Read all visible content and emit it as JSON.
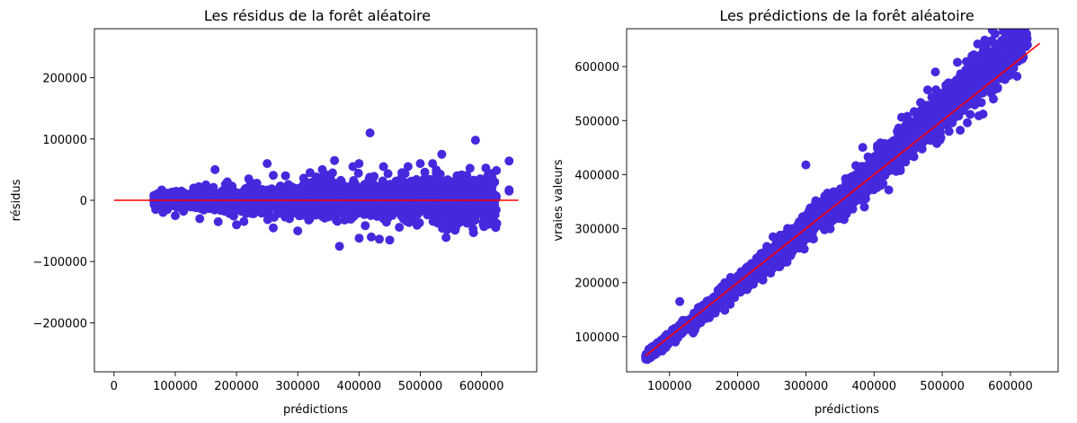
{
  "chart_data": [
    {
      "type": "scatter",
      "title": "Les résidus de la forêt aléatoire",
      "xlabel": "prédictions",
      "ylabel": "résidus",
      "xlim": [
        -32000,
        690000
      ],
      "ylim": [
        -280000,
        280000
      ],
      "xticks": [
        0,
        100000,
        200000,
        300000,
        400000,
        500000,
        600000
      ],
      "xtick_labels": [
        "0",
        "100000",
        "200000",
        "300000",
        "400000",
        "500000",
        "600000"
      ],
      "yticks": [
        -200000,
        -100000,
        0,
        100000,
        200000
      ],
      "ytick_labels": [
        "−200000",
        "−100000",
        "0",
        "100000",
        "200000"
      ],
      "grid": false,
      "point_color": "#4529DD",
      "line_color": "#FF0000",
      "reference_line": {
        "x": [
          0,
          660000
        ],
        "y": [
          0,
          0
        ]
      },
      "sampled_points": [
        [
          68000,
          -15000
        ],
        [
          72000,
          -8000
        ],
        [
          75000,
          2000
        ],
        [
          80000,
          -20000
        ],
        [
          85000,
          5000
        ],
        [
          90000,
          -5000
        ],
        [
          95000,
          10000
        ],
        [
          100000,
          -25000
        ],
        [
          110000,
          15000
        ],
        [
          120000,
          -10000
        ],
        [
          130000,
          20000
        ],
        [
          140000,
          -30000
        ],
        [
          150000,
          25000
        ],
        [
          165000,
          50000
        ],
        [
          170000,
          -35000
        ],
        [
          185000,
          30000
        ],
        [
          200000,
          -40000
        ],
        [
          220000,
          35000
        ],
        [
          250000,
          60000
        ],
        [
          260000,
          -45000
        ],
        [
          280000,
          40000
        ],
        [
          300000,
          -50000
        ],
        [
          320000,
          45000
        ],
        [
          340000,
          50000
        ],
        [
          360000,
          65000
        ],
        [
          368000,
          -75000
        ],
        [
          390000,
          55000
        ],
        [
          400000,
          60000
        ],
        [
          418000,
          110000
        ],
        [
          420000,
          -60000
        ],
        [
          440000,
          55000
        ],
        [
          450000,
          -65000
        ],
        [
          470000,
          45000
        ],
        [
          480000,
          55000
        ],
        [
          500000,
          60000
        ],
        [
          510000,
          -20000
        ],
        [
          520000,
          60000
        ],
        [
          530000,
          -10000
        ],
        [
          535000,
          75000
        ],
        [
          540000,
          15000
        ],
        [
          560000,
          40000
        ],
        [
          575000,
          25000
        ],
        [
          590000,
          98000
        ],
        [
          600000,
          30000
        ],
        [
          610000,
          40000
        ],
        [
          615000,
          -7000
        ],
        [
          645000,
          64000
        ],
        [
          645000,
          17000
        ],
        [
          645000,
          15000
        ]
      ]
    },
    {
      "type": "scatter",
      "title": "Les prédictions de la forêt aléatoire",
      "xlabel": "prédictions",
      "ylabel": "vraies valeurs",
      "xlim": [
        37000,
        670000
      ],
      "ylim": [
        35000,
        670000
      ],
      "xticks": [
        100000,
        200000,
        300000,
        400000,
        500000,
        600000
      ],
      "xtick_labels": [
        "100000",
        "200000",
        "300000",
        "400000",
        "500000",
        "600000"
      ],
      "yticks": [
        100000,
        200000,
        300000,
        400000,
        500000,
        600000
      ],
      "ytick_labels": [
        "100000",
        "200000",
        "300000",
        "400000",
        "500000",
        "600000"
      ],
      "grid": false,
      "point_color": "#4529DD",
      "line_color": "#FF0000",
      "reference_line": {
        "x": [
          65000,
          643000
        ],
        "y": [
          65000,
          643000
        ]
      },
      "sampled_points": [
        [
          75000,
          65000
        ],
        [
          80000,
          85000
        ],
        [
          90000,
          95000
        ],
        [
          100000,
          95000
        ],
        [
          110000,
          115000
        ],
        [
          115000,
          165000
        ],
        [
          130000,
          120000
        ],
        [
          150000,
          145000
        ],
        [
          170000,
          170000
        ],
        [
          200000,
          195000
        ],
        [
          230000,
          225000
        ],
        [
          250000,
          260000
        ],
        [
          260000,
          235000
        ],
        [
          280000,
          300000
        ],
        [
          300000,
          290000
        ],
        [
          300000,
          418000
        ],
        [
          320000,
          330000
        ],
        [
          350000,
          340000
        ],
        [
          380000,
          390000
        ],
        [
          400000,
          420000
        ],
        [
          410000,
          380000
        ],
        [
          430000,
          440000
        ],
        [
          440000,
          450000
        ],
        [
          460000,
          480000
        ],
        [
          470000,
          455000
        ],
        [
          480000,
          510000
        ],
        [
          490000,
          590000
        ],
        [
          500000,
          520000
        ],
        [
          510000,
          480000
        ],
        [
          520000,
          560000
        ],
        [
          540000,
          575000
        ],
        [
          550000,
          580000
        ],
        [
          560000,
          610000
        ],
        [
          570000,
          600000
        ],
        [
          575000,
          540000
        ],
        [
          580000,
          640000
        ],
        [
          600000,
          590000
        ],
        [
          620000,
          640000
        ],
        [
          625000,
          640000
        ]
      ]
    }
  ]
}
